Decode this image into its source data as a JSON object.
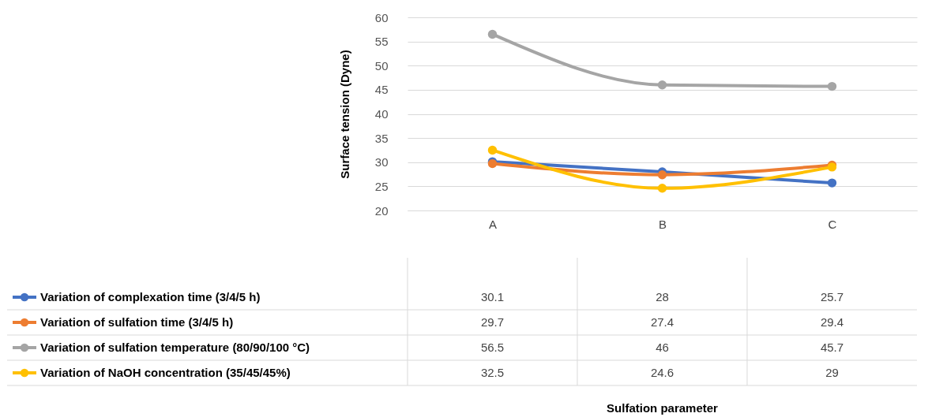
{
  "chart_data": {
    "type": "line",
    "annotations": [
      "Sulfation parameter"
    ],
    "ylabel": "Surface tension (Dyne)",
    "categories": [
      "A",
      "B",
      "C"
    ],
    "series": [
      {
        "name": "Variation of complexation time (3/4/5 h)",
        "color": "#4472c4",
        "values": [
          30.1,
          28,
          25.7
        ]
      },
      {
        "name": "Variation of sulfation time (3/4/5 h)",
        "color": "#ed7d31",
        "values": [
          29.7,
          27.4,
          29.4
        ]
      },
      {
        "name": "Variation of sulfation temperature (80/90/100 °C)",
        "color": "#a5a5a5",
        "values": [
          56.5,
          46,
          45.7
        ]
      },
      {
        "name": "Variation of NaOH concentration (35/45/45%)",
        "color": "#ffc000",
        "values": [
          32.5,
          24.6,
          29
        ]
      }
    ],
    "ylim": [
      20,
      60
    ],
    "yticks": [
      20,
      25,
      30,
      35,
      40,
      45,
      50,
      55,
      60
    ],
    "grid": "y",
    "legend": "bottom",
    "marker": "circle",
    "line_style": "solid",
    "data_labels": true
  }
}
